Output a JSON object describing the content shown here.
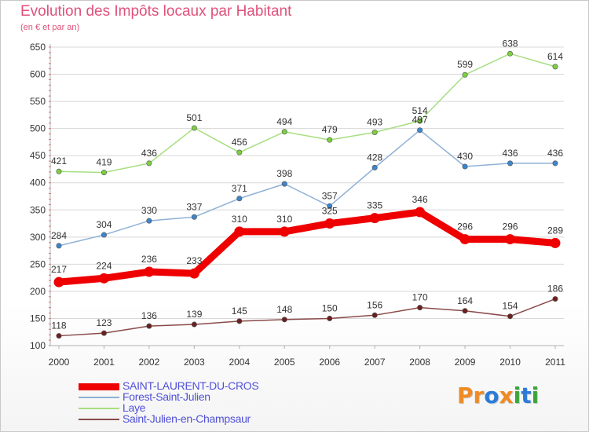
{
  "header": {
    "title": "Evolution des Impôts locaux par Habitant",
    "subtitle": "(en € et par an)"
  },
  "brand": {
    "logo_text": "Proxiti",
    "letters": [
      {
        "ch": "P",
        "color": "#f08a24"
      },
      {
        "ch": "r",
        "color": "#f08a24"
      },
      {
        "ch": "o",
        "color": "#2c7bd8"
      },
      {
        "ch": "x",
        "color": "#f08a24"
      },
      {
        "ch": "i",
        "color": "#3aa63a"
      },
      {
        "ch": "t",
        "color": "#2c7bd8"
      },
      {
        "ch": "i",
        "color": "#3aa63a"
      }
    ]
  },
  "colors": {
    "title": "#e0527a",
    "axis_text": "#333333",
    "grid": "#d8d8d8",
    "legend_text": "#5050d8"
  },
  "chart_data": {
    "type": "line",
    "title": "Evolution des Impôts locaux par Habitant",
    "subtitle": "(en € et par an)",
    "xlabel": "",
    "ylabel": "",
    "x": [
      "2000",
      "2001",
      "2002",
      "2003",
      "2004",
      "2005",
      "2006",
      "2007",
      "2008",
      "2009",
      "2010",
      "2011"
    ],
    "ylim": [
      100,
      650
    ],
    "yticks": [
      100,
      150,
      200,
      250,
      300,
      350,
      400,
      450,
      500,
      550,
      600,
      650
    ],
    "grid": true,
    "legend_position": "bottom-left",
    "series": [
      {
        "name": "SAINT-LAURENT-DU-CROS",
        "color": "#ee0000",
        "marker_color": "#ee0000",
        "emphasis": true,
        "values": [
          217,
          224,
          236,
          233,
          310,
          310,
          325,
          335,
          346,
          296,
          296,
          289
        ]
      },
      {
        "name": "Forest-Saint-Julien",
        "color": "#8fb1d6",
        "marker_color": "#3b86cc",
        "emphasis": false,
        "values": [
          284,
          304,
          330,
          337,
          371,
          398,
          357,
          428,
          497,
          430,
          436,
          436
        ]
      },
      {
        "name": "Laye",
        "color": "#a8de80",
        "marker_color": "#7ccf3f",
        "emphasis": false,
        "values": [
          421,
          419,
          436,
          501,
          456,
          494,
          479,
          493,
          514,
          599,
          638,
          614
        ]
      },
      {
        "name": "Saint-Julien-en-Champsaur",
        "color": "#8a4a4a",
        "marker_color": "#6b2020",
        "emphasis": false,
        "values": [
          118,
          123,
          136,
          139,
          145,
          148,
          150,
          156,
          170,
          164,
          154,
          186
        ]
      }
    ]
  }
}
